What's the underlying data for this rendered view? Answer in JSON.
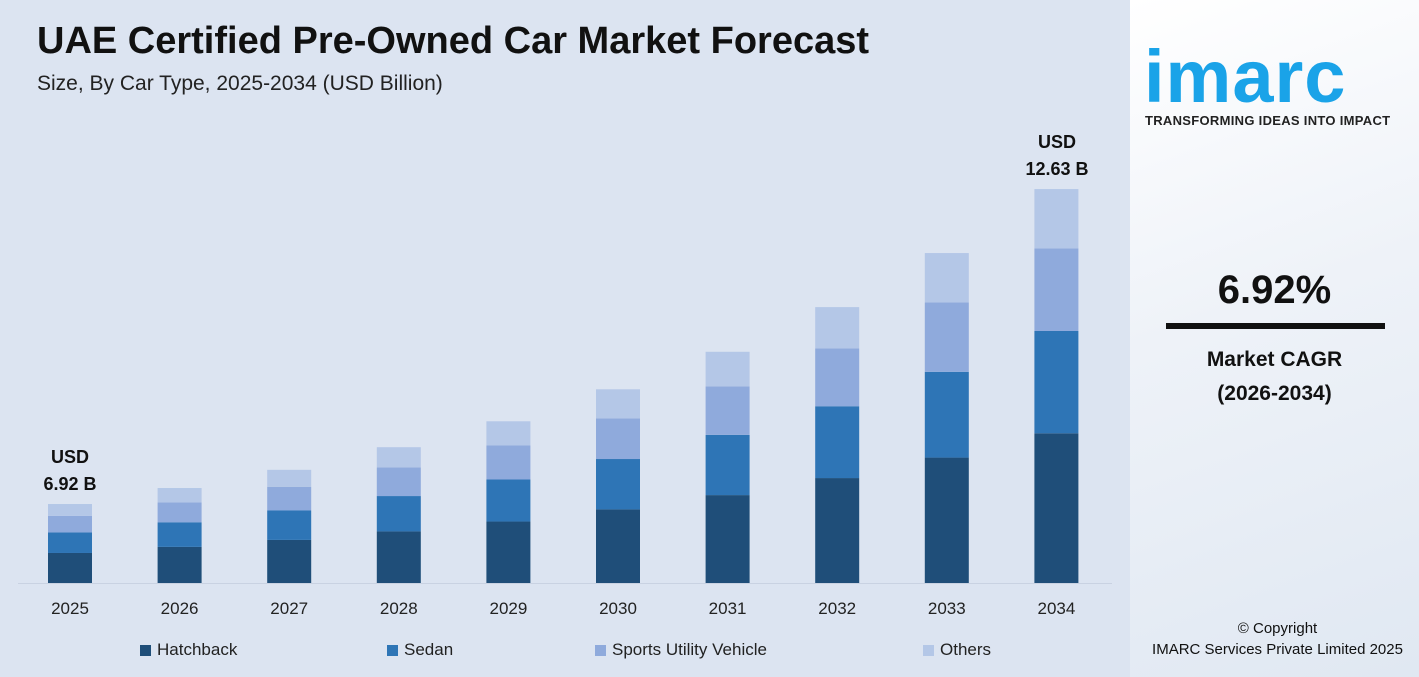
{
  "header": {
    "title": "UAE Certified Pre-Owned Car Market Forecast",
    "subtitle": "Size, By Car Type, 2025-2034 (USD Billion)"
  },
  "annotations": {
    "start_line1": "USD",
    "start_line2": "6.92 B",
    "end_line1": "USD",
    "end_line2": "12.63 B"
  },
  "chart_data": {
    "type": "bar",
    "stacked": true,
    "title": "UAE Certified Pre-Owned Car Market Forecast",
    "subtitle": "Size, By Car Type, 2025-2034 (USD Billion)",
    "categories": [
      "2025",
      "2026",
      "2027",
      "2028",
      "2029",
      "2030",
      "2031",
      "2032",
      "2033",
      "2034"
    ],
    "series": [
      {
        "name": "Hatchback",
        "color": "#1f4e79",
        "values": [
          2.63,
          2.74,
          2.87,
          3.02,
          3.2,
          3.42,
          3.68,
          3.99,
          4.36,
          4.8
        ]
      },
      {
        "name": "Sedan",
        "color": "#2e75b6",
        "values": [
          1.8,
          1.87,
          1.96,
          2.07,
          2.19,
          2.34,
          2.52,
          2.73,
          2.98,
          3.28
        ]
      },
      {
        "name": "Sports Utility Vehicle",
        "color": "#8faadc",
        "values": [
          1.45,
          1.51,
          1.58,
          1.67,
          1.77,
          1.89,
          2.03,
          2.2,
          2.41,
          2.65
        ]
      },
      {
        "name": "Others",
        "color": "#b4c7e7",
        "values": [
          1.04,
          1.09,
          1.13,
          1.19,
          1.26,
          1.35,
          1.45,
          1.57,
          1.72,
          1.9
        ]
      }
    ],
    "totals": [
      6.92,
      7.21,
      7.54,
      7.95,
      8.42,
      9.0,
      9.68,
      10.49,
      11.47,
      12.63
    ],
    "grid": false,
    "legend_position": "bottom"
  },
  "sidebar": {
    "logo": "imarc",
    "tagline": "TRANSFORMING IDEAS INTO IMPACT",
    "cagr_value": "6.92%",
    "cagr_label": "Market CAGR",
    "cagr_period": "(2026-2034)",
    "copyright_line1": "© Copyright",
    "copyright_line2": "IMARC Services Private Limited 2025"
  }
}
